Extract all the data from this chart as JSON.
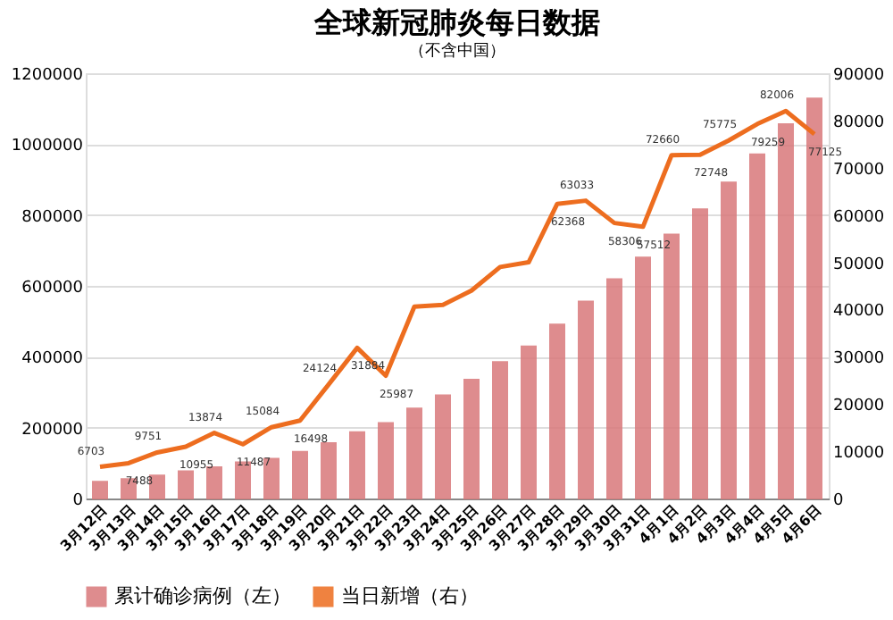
{
  "chart_data": {
    "type": "bar",
    "title": "全球新冠肺炎每日数据",
    "subtitle": "（不含中国）",
    "categories": [
      "3月12日",
      "3月13日",
      "3月14日",
      "3月15日",
      "3月16日",
      "3月17日",
      "3月18日",
      "3月19日",
      "3月20日",
      "3月21日",
      "3月22日",
      "3月23日",
      "3月24日",
      "3月25日",
      "3月26日",
      "3月27日",
      "3月28日",
      "3月29日",
      "3月30日",
      "3月31日",
      "4月1日",
      "4月2日",
      "4月3日",
      "4月4日",
      "4月5日",
      "4月6日"
    ],
    "series": [
      {
        "name": "累计确诊病例（左）",
        "color": "#d9797b",
        "values": [
          47000,
          55000,
          65000,
          77000,
          88000,
          102000,
          112000,
          132000,
          156000,
          187000,
          213000,
          254000,
          291000,
          335000,
          385000,
          429000,
          491000,
          556000,
          619000,
          680000,
          745000,
          816000,
          892000,
          971000,
          1056000,
          1129000
        ]
      },
      {
        "name": "当日新增（右）",
        "type": "line",
        "axis": "y2",
        "color": "#ed6d1f",
        "values": [
          6703,
          7488,
          9751,
          10955,
          13874,
          11487,
          15084,
          16498,
          24124,
          31884,
          25987,
          40600,
          41000,
          44000,
          49000,
          50000,
          62368,
          63033,
          58306,
          57512,
          72660,
          72748,
          75775,
          79259,
          82006,
          77125
        ],
        "value_labels": [
          "6703",
          "7488",
          "9751",
          "10955",
          "13874",
          "11487",
          "15084",
          "16498",
          "24124",
          "31884",
          "25987",
          null,
          null,
          null,
          null,
          null,
          "62368",
          "63033",
          "58306",
          "57512",
          "72660",
          "72748",
          "75775",
          "79259",
          "82006",
          "77125"
        ]
      }
    ],
    "ylim": [
      0,
      1200000
    ],
    "yticks": [
      0,
      200000,
      400000,
      600000,
      800000,
      1000000,
      1200000
    ],
    "y2lim": [
      0,
      90000
    ],
    "y2ticks": [
      0,
      10000,
      20000,
      30000,
      40000,
      50000,
      60000,
      70000,
      80000,
      90000
    ],
    "grid": "y",
    "legend": "bottom"
  }
}
